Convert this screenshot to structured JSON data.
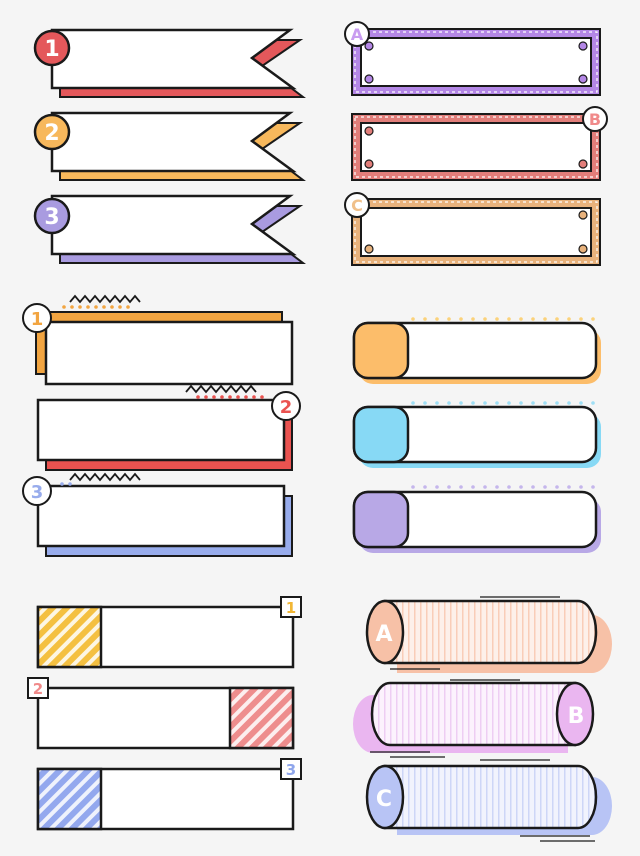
{
  "ribbons": [
    {
      "label": "1",
      "color": "#e4585b"
    },
    {
      "label": "2",
      "color": "#f7b85c"
    },
    {
      "label": "3",
      "color": "#a99be0"
    }
  ],
  "stitched_frames": [
    {
      "label": "A",
      "color": "#b487e6",
      "label_color": "#c99cf0"
    },
    {
      "label": "B",
      "color": "#e27e7a",
      "label_color": "#f08a8a"
    },
    {
      "label": "C",
      "color": "#e8b27c",
      "label_color": "#f0c08a"
    }
  ],
  "offset_boxes": [
    {
      "label": "1",
      "color": "#f2a541"
    },
    {
      "label": "2",
      "color": "#ea5350"
    },
    {
      "label": "3",
      "color": "#98acec"
    }
  ],
  "pill_boxes": [
    {
      "color": "#fcbd6a",
      "dot_color": "#fbd27a"
    },
    {
      "color": "#87d9f5",
      "dot_color": "#9fdff5"
    },
    {
      "color": "#b8a8e6",
      "dot_color": "#c5b6ec"
    }
  ],
  "hatched_boxes": [
    {
      "label": "1",
      "color": "#f4c041",
      "label_color": "#f2b735"
    },
    {
      "label": "2",
      "color": "#ee8d8d",
      "label_color": "#f08a8a"
    },
    {
      "label": "3",
      "color": "#93a8ee",
      "label_color": "#8fa6ec"
    }
  ],
  "cylinders": [
    {
      "label": "A",
      "color": "#f7c1a7",
      "body_color": "#fdeee6"
    },
    {
      "label": "B",
      "color": "#eab6f0",
      "body_color": "#fbf0fc"
    },
    {
      "label": "C",
      "color": "#b8c4f5",
      "body_color": "#eef1fd"
    }
  ]
}
